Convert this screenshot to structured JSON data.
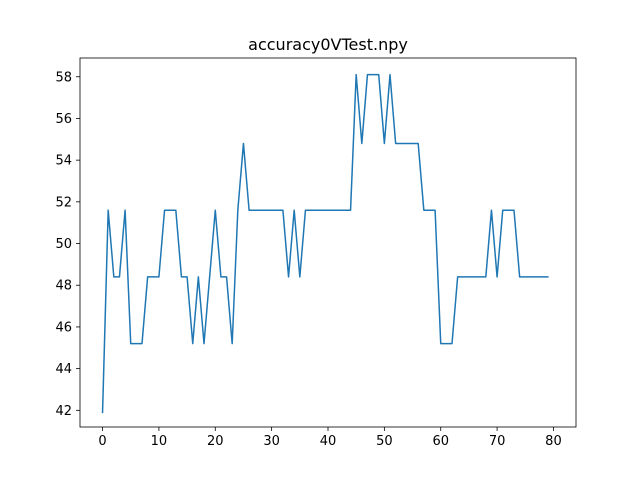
{
  "chart_data": {
    "type": "line",
    "title": "accuracy0VTest.npy",
    "xlabel": "",
    "ylabel": "",
    "xlim": [
      -4,
      84
    ],
    "ylim": [
      41.2,
      58.9
    ],
    "xticks": [
      0,
      10,
      20,
      30,
      40,
      50,
      60,
      70,
      80
    ],
    "yticks": [
      42,
      44,
      46,
      48,
      50,
      52,
      54,
      56,
      58
    ],
    "grid": false,
    "legend": "none",
    "line_color": "#1f77b4",
    "series": [
      {
        "values": [
          41.9,
          51.6,
          48.4,
          48.4,
          51.6,
          45.2,
          45.2,
          45.2,
          48.4,
          48.4,
          48.4,
          51.6,
          51.6,
          51.6,
          48.4,
          48.4,
          45.2,
          48.4,
          45.2,
          48.4,
          51.6,
          48.4,
          48.4,
          45.2,
          51.6,
          54.8,
          51.6,
          51.6,
          51.6,
          51.6,
          51.6,
          51.6,
          51.6,
          48.4,
          51.6,
          48.4,
          51.6,
          51.6,
          51.6,
          51.6,
          51.6,
          51.6,
          51.6,
          51.6,
          51.6,
          58.1,
          54.8,
          58.1,
          58.1,
          58.1,
          54.8,
          58.1,
          54.8,
          54.8,
          54.8,
          54.8,
          54.8,
          51.6,
          51.6,
          51.6,
          45.2,
          45.2,
          45.2,
          48.4,
          48.4,
          48.4,
          48.4,
          48.4,
          48.4,
          51.6,
          48.4,
          51.6,
          51.6,
          51.6,
          48.4,
          48.4,
          48.4,
          48.4,
          48.4,
          48.4
        ]
      }
    ]
  }
}
